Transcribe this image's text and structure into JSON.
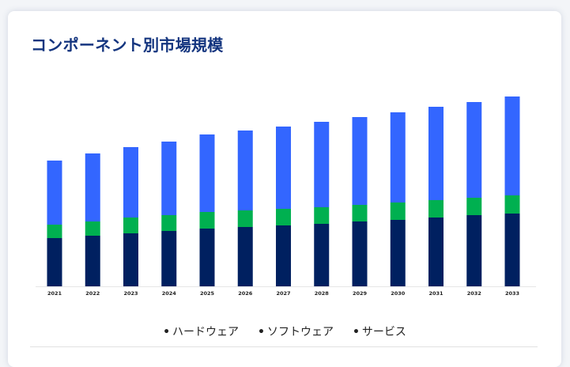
{
  "title": "コンポーネント別市場規模",
  "chart_data": {
    "type": "bar",
    "stacked": true,
    "title": "コンポーネント別市場規模",
    "categories": [
      "2021",
      "2022",
      "2023",
      "2024",
      "2025",
      "2026",
      "2027",
      "2028",
      "2029",
      "2030",
      "2031",
      "2032",
      "2033"
    ],
    "series": [
      {
        "name": "ハードウェア",
        "color": "#002060",
        "values": [
          61,
          64,
          67,
          70,
          73,
          75,
          77,
          79,
          82,
          84,
          87,
          90,
          92
        ]
      },
      {
        "name": "ソフトウェア",
        "color": "#00b050",
        "values": [
          17,
          18,
          20,
          20,
          21,
          21,
          21,
          21,
          21,
          22,
          22,
          22,
          23
        ]
      },
      {
        "name": "サービス",
        "color": "#3366ff",
        "values": [
          81,
          86,
          89,
          93,
          98,
          101,
          104,
          108,
          111,
          114,
          118,
          121,
          125
        ]
      }
    ],
    "xlabel": "",
    "ylabel": "",
    "y_axis_visible": false,
    "grid": false,
    "legend_position": "bottom"
  }
}
